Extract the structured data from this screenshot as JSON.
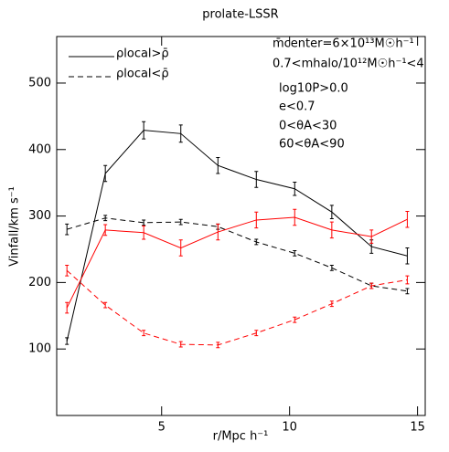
{
  "chart_data": {
    "type": "line",
    "title": "prolate-LSSR",
    "xlabel": "r/Mpc h⁻¹",
    "ylabel": "Vinfall/km s⁻¹",
    "xlim": [
      0.9,
      15.3
    ],
    "ylim": [
      0,
      570
    ],
    "xticks": [
      5,
      10,
      15
    ],
    "yticks": [
      100,
      200,
      300,
      400,
      500
    ],
    "x": [
      1.3,
      2.8,
      4.3,
      5.75,
      7.2,
      8.7,
      10.2,
      11.65,
      13.2,
      14.6
    ],
    "series": [
      {
        "name": "ρlocal>ρ̄",
        "color": "#000000",
        "dash": false,
        "values": [
          112,
          364,
          429,
          424,
          376,
          355,
          341,
          306,
          254,
          240
        ],
        "errors": [
          5,
          12,
          13,
          13,
          12,
          12,
          10,
          10,
          10,
          12
        ]
      },
      {
        "name": "ρlocal<ρ̄",
        "color": "#000000",
        "dash": true,
        "values": [
          280,
          297,
          290,
          291,
          284,
          261,
          244,
          222,
          195,
          187
        ],
        "errors": [
          8,
          4,
          4,
          4,
          4,
          4,
          4,
          4,
          4,
          4
        ]
      },
      {
        "color": "#ff0000",
        "dash": false,
        "values": [
          162,
          279,
          275,
          252,
          276,
          294,
          298,
          279,
          269,
          295
        ],
        "errors": [
          8,
          8,
          10,
          12,
          12,
          12,
          12,
          12,
          10,
          12
        ]
      },
      {
        "color": "#ff0000",
        "dash": true,
        "values": [
          218,
          166,
          124,
          107,
          106,
          124,
          144,
          168,
          195,
          204
        ],
        "errors": [
          8,
          4,
          4,
          4,
          4,
          4,
          4,
          4,
          4,
          6
        ]
      }
    ],
    "annotations": [
      {
        "text": "m̄center=6×10¹³M☉h⁻¹",
        "color": "#000000"
      },
      {
        "text": "0.7<mhalo/10¹²M☉h⁻¹<4",
        "color": "#000000"
      },
      {
        "text": "log10P>0.0",
        "color": "#000000"
      },
      {
        "text": "e<0.7",
        "color": "#000000"
      },
      {
        "text": "0<θA<30",
        "color": "#ff0000"
      },
      {
        "text": "60<θA<90",
        "color": "#000000"
      }
    ]
  }
}
